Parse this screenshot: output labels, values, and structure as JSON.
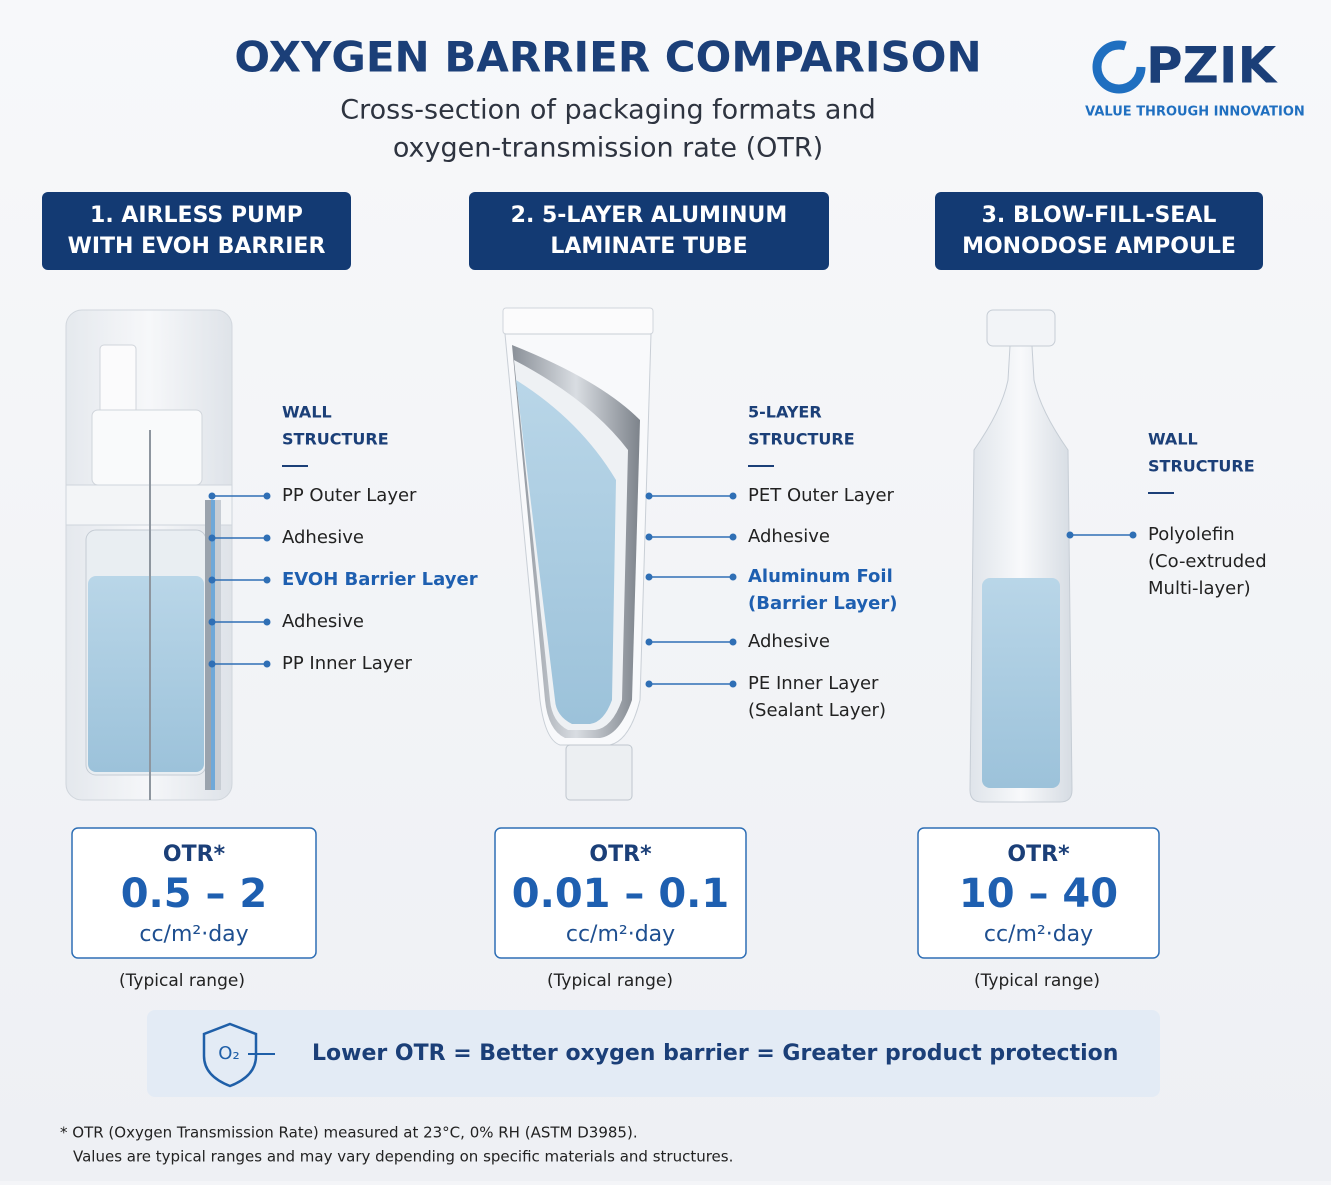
{
  "header": {
    "title": "OXYGEN BARRIER COMPARISON",
    "subtitle": [
      "Cross-section of packaging formats and",
      "oxygen-transmission rate (OTR)"
    ]
  },
  "logo": {
    "name": "PZIK",
    "tagline": "VALUE THROUGH INNOVATION"
  },
  "panels": [
    {
      "title": [
        "1. AIRLESS PUMP",
        "WITH EVOH BARRIER"
      ],
      "structure_heading": [
        "WALL",
        "STRUCTURE"
      ],
      "layers": [
        {
          "lines": [
            "PP Outer Layer"
          ]
        },
        {
          "lines": [
            "Adhesive"
          ]
        },
        {
          "lines": [
            "EVOH Barrier Layer"
          ],
          "highlight": true
        },
        {
          "lines": [
            "Adhesive"
          ]
        },
        {
          "lines": [
            "PP Inner Layer"
          ]
        }
      ],
      "otr": {
        "label": "OTR*",
        "value": "0.5 – 2",
        "unit": "cc/m²·day",
        "note": "(Typical range)"
      }
    },
    {
      "title": [
        "2. 5-LAYER ALUMINUM",
        "LAMINATE TUBE"
      ],
      "structure_heading": [
        "5-LAYER",
        "STRUCTURE"
      ],
      "layers": [
        {
          "lines": [
            "PET Outer Layer"
          ]
        },
        {
          "lines": [
            "Adhesive"
          ]
        },
        {
          "lines": [
            "Aluminum Foil",
            "(Barrier Layer)"
          ],
          "highlight": true
        },
        {
          "lines": [
            "Adhesive"
          ]
        },
        {
          "lines": [
            "PE Inner Layer",
            "(Sealant Layer)"
          ]
        }
      ],
      "otr": {
        "label": "OTR*",
        "value": "0.01 – 0.1",
        "unit": "cc/m²·day",
        "note": "(Typical range)"
      }
    },
    {
      "title": [
        "3. BLOW-FILL-SEAL",
        "MONODOSE AMPOULE"
      ],
      "structure_heading": [
        "WALL",
        "STRUCTURE"
      ],
      "layers": [
        {
          "lines": [
            "Polyolefin",
            "(Co-extruded",
            "Multi-layer)"
          ]
        }
      ],
      "otr": {
        "label": "OTR*",
        "value": "10 – 40",
        "unit": "cc/m²·day",
        "note": "(Typical range)"
      }
    }
  ],
  "banner": {
    "icon_text": "O₂",
    "text": "Lower OTR = Better oxygen barrier = Greater product protection"
  },
  "footnote": [
    "* OTR (Oxygen Transmission Rate) measured at 23°C, 0% RH (ASTM D3985).",
    "Values are typical ranges and may vary depending on specific materials and structures."
  ]
}
